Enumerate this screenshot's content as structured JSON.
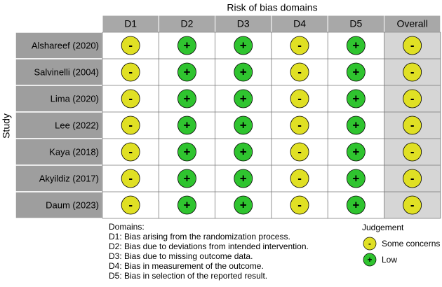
{
  "title": "Risk of bias domains",
  "y_label": "Study",
  "columns": [
    "D1",
    "D2",
    "D3",
    "D4",
    "D5",
    "Overall"
  ],
  "rows": [
    {
      "study": "Alshareef (2020)",
      "judgements": [
        "-",
        "+",
        "+",
        "-",
        "+",
        "-"
      ]
    },
    {
      "study": "Salvinelli (2004)",
      "judgements": [
        "-",
        "+",
        "+",
        "-",
        "+",
        "-"
      ]
    },
    {
      "study": "Lima (2020)",
      "judgements": [
        "-",
        "+",
        "+",
        "-",
        "+",
        "-"
      ]
    },
    {
      "study": "Lee (2022)",
      "judgements": [
        "-",
        "+",
        "+",
        "-",
        "+",
        "-"
      ]
    },
    {
      "study": "Kaya (2018)",
      "judgements": [
        "-",
        "+",
        "+",
        "-",
        "+",
        "-"
      ]
    },
    {
      "study": "Akyildiz (2017)",
      "judgements": [
        "-",
        "+",
        "+",
        "-",
        "+",
        "-"
      ]
    },
    {
      "study": "Daum (2023)",
      "judgements": [
        "-",
        "+",
        "+",
        "-",
        "+",
        "-"
      ]
    }
  ],
  "domains": {
    "heading": "Domains:",
    "items": [
      "D1: Bias arising from the randomization process.",
      "D2: Bias due to deviations from intended intervention.",
      "D3: Bias due to missing outcome data.",
      "D4: Bias in measurement of the outcome.",
      "D5: Bias in selection of the reported result."
    ]
  },
  "legend": {
    "title": "Judgement",
    "items": [
      {
        "symbol": "-",
        "label": "Some concerns",
        "color": "#e0e024"
      },
      {
        "symbol": "+",
        "label": "Low",
        "color": "#2fc42f"
      }
    ]
  }
}
